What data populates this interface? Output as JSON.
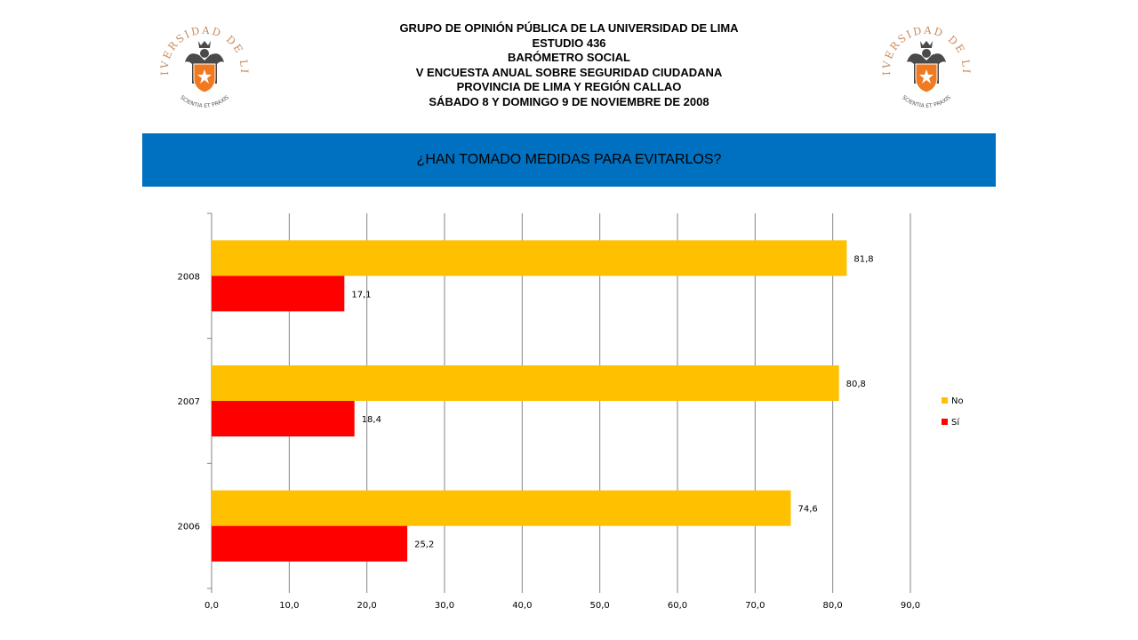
{
  "header": {
    "lines": [
      "GRUPO DE OPINIÓN PÚBLICA DE LA UNIVERSIDAD DE LIMA",
      "ESTUDIO 436",
      "BARÓMETRO SOCIAL",
      "V ENCUESTA ANUAL SOBRE SEGURIDAD CIUDADANA",
      "PROVINCIA DE LIMA Y REGIÓN CALLAO",
      "SÁBADO 8 Y DOMINGO 9 DE NOVIEMBRE DE 2008"
    ]
  },
  "logo": {
    "arc_text": "UNIVERSIDAD DE LIMA",
    "motto": "SCIENTIA ET PRAXIS",
    "text_color": "#c8895a",
    "shield_color": "#f07a22",
    "eagle_color": "#4a4a4a"
  },
  "banner": {
    "title": "¿HAN TOMADO MEDIDAS PARA EVITARLOS?",
    "bg_color": "#0070c0"
  },
  "chart_data": {
    "type": "bar",
    "orientation": "horizontal",
    "categories": [
      "2008",
      "2007",
      "2006"
    ],
    "series": [
      {
        "name": "No",
        "values": [
          81.8,
          80.8,
          74.6
        ],
        "labels": [
          "81,8",
          "80,8",
          "74,6"
        ],
        "color": "#ffc000"
      },
      {
        "name": "Sí",
        "values": [
          17.1,
          18.4,
          25.2
        ],
        "labels": [
          "17,1",
          "18,4",
          "25,2"
        ],
        "color": "#ff0000"
      }
    ],
    "xlim": [
      0,
      90
    ],
    "xticks": [
      0,
      10,
      20,
      30,
      40,
      50,
      60,
      70,
      80,
      90
    ],
    "xtick_labels": [
      "0,0",
      "10,0",
      "20,0",
      "30,0",
      "40,0",
      "50,0",
      "60,0",
      "70,0",
      "80,0",
      "90,0"
    ],
    "grid": "vertical",
    "legend": "right"
  }
}
